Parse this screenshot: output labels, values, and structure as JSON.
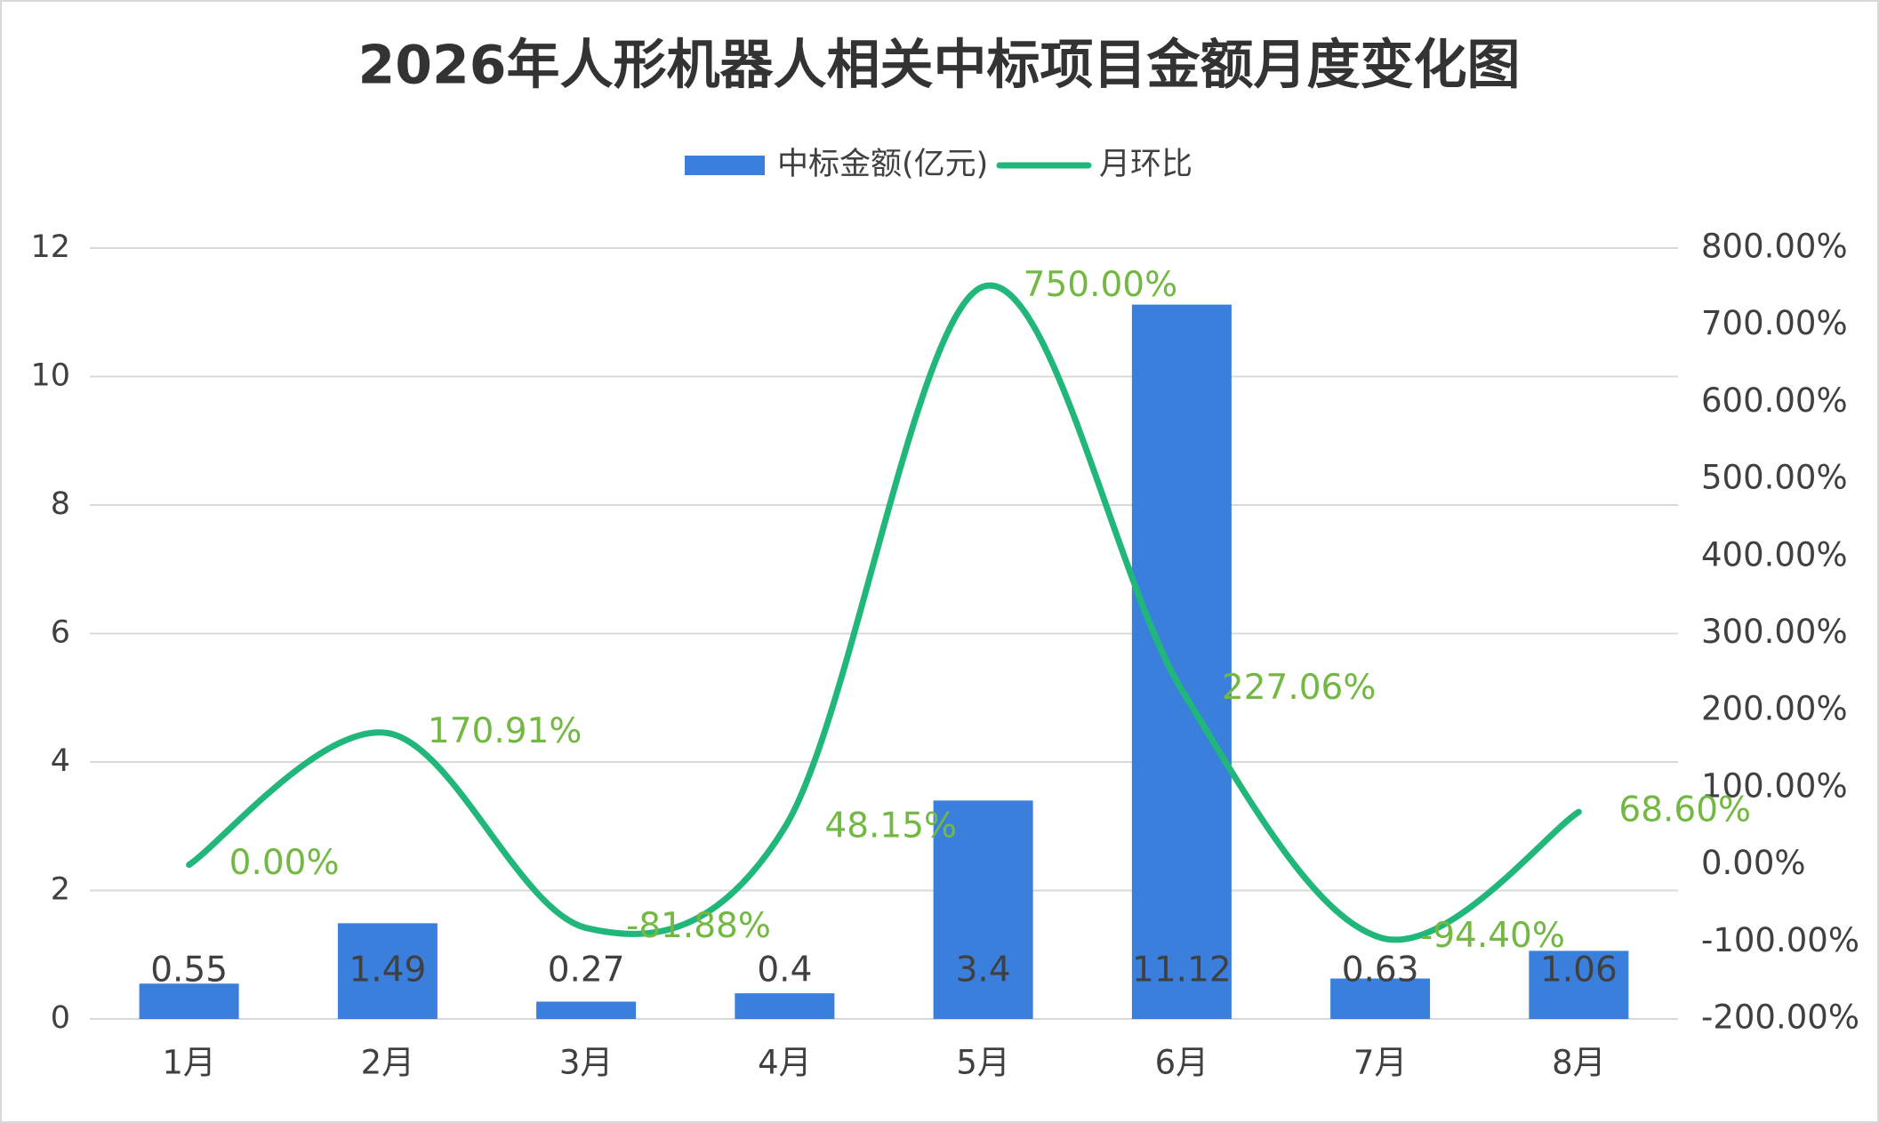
{
  "chart_data": {
    "type": "bar-line",
    "title": "2026年人形机器人相关中标项目金额月度变化图",
    "categories": [
      "1月",
      "2月",
      "3月",
      "4月",
      "5月",
      "6月",
      "7月",
      "8月"
    ],
    "series": [
      {
        "name": "中标金额(亿元)",
        "type": "bar",
        "color": "#3a7fdc",
        "values": [
          0.55,
          1.49,
          0.27,
          0.4,
          3.4,
          11.12,
          0.63,
          1.06
        ]
      },
      {
        "name": "月环比",
        "type": "line",
        "axis": "y2",
        "color": "#21b77a",
        "label_color": "#72b843",
        "values": [
          0,
          170.91,
          -81.88,
          48.15,
          750,
          227.06,
          -94.4,
          68.6
        ],
        "value_labels": [
          "0.00%",
          "170.91%",
          "-81.88%",
          "48.15%",
          "750.00%",
          "227.06%",
          "-94.40%",
          "68.60%"
        ]
      }
    ],
    "ylim": [
      0,
      12
    ],
    "yticks": [
      0,
      2,
      4,
      6,
      8,
      10,
      12
    ],
    "y2lim": [
      -200,
      800
    ],
    "y2ticks": [
      {
        "value": -200,
        "label": "-200.00%"
      },
      {
        "value": -100,
        "label": "-100.00%"
      },
      {
        "value": 0,
        "label": "0.00%"
      },
      {
        "value": 100,
        "label": "100.00%"
      },
      {
        "value": 200,
        "label": "200.00%"
      },
      {
        "value": 300,
        "label": "300.00%"
      },
      {
        "value": 400,
        "label": "400.00%"
      },
      {
        "value": 500,
        "label": "500.00%"
      },
      {
        "value": 600,
        "label": "600.00%"
      },
      {
        "value": 700,
        "label": "700.00%"
      },
      {
        "value": 800,
        "label": "800.00%"
      }
    ],
    "grid": true,
    "legend": "top"
  }
}
